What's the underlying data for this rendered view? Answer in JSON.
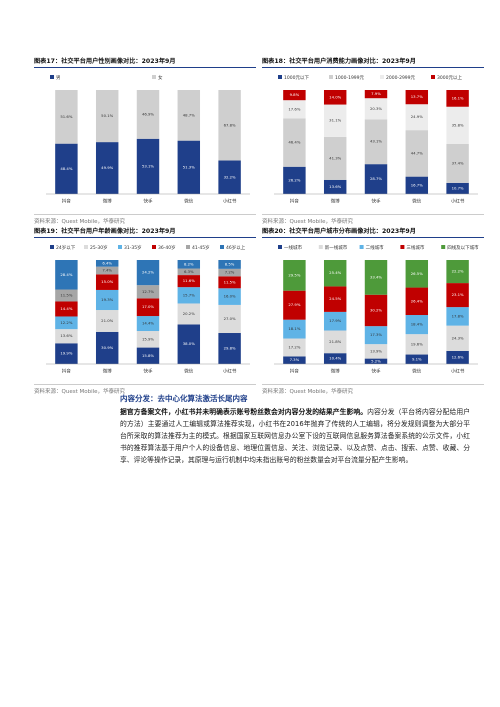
{
  "chart_data": [
    {
      "type": "bar",
      "title": "图表17：社交平台用户性别画像对比：2023年9月",
      "source": "资料来源：Quest Mobile，华泰研究",
      "categories": [
        "抖音",
        "微博",
        "快手",
        "微信",
        "小红书"
      ],
      "ylim": [
        0,
        100
      ],
      "series": [
        {
          "name": "男",
          "color": "#1f3f8a",
          "values": [
            48.4,
            49.9,
            53.1,
            51.3,
            32.2
          ],
          "value_labels": [
            "48.4%",
            "49.9%",
            "53.1%",
            "51.3%",
            "32.2%"
          ]
        },
        {
          "name": "女",
          "color": "#cfcfcf",
          "values": [
            51.6,
            50.1,
            46.9,
            48.7,
            67.8
          ],
          "value_labels": [
            "51.6%",
            "50.1%",
            "46.9%",
            "48.7%",
            "67.8%"
          ]
        }
      ]
    },
    {
      "type": "bar",
      "title": "图表18：社交平台用户消费能力画像对比：2023年9月",
      "source": "资料来源：Quest Mobile，华泰研究",
      "categories": [
        "抖音",
        "微博",
        "快手",
        "微信",
        "小红书"
      ],
      "ylim": [
        0,
        100
      ],
      "series": [
        {
          "name": "1000元以下",
          "color": "#1f3f8a",
          "values": [
            26.2,
            13.6,
            28.7,
            16.7,
            10.7
          ],
          "value_labels": [
            "26.2%",
            "13.6%",
            "28.7%",
            "16.7%",
            "10.7%"
          ]
        },
        {
          "name": "1000-1999元",
          "color": "#cfcfcf",
          "values": [
            46.4,
            41.3,
            43.1,
            44.7,
            37.4
          ],
          "value_labels": [
            "46.4%",
            "41.3%",
            "43.1%",
            "44.7%",
            "37.4%"
          ]
        },
        {
          "name": "2000-2999元",
          "color": "#ececec",
          "values": [
            17.6,
            31.1,
            20.3,
            24.9,
            35.8
          ],
          "value_labels": [
            "17.6%",
            "31.1%",
            "20.3%",
            "24.9%",
            "35.8%"
          ]
        },
        {
          "name": "3000元以上",
          "color": "#c00000",
          "values": [
            9.8,
            14.0,
            7.9,
            13.7,
            16.1
          ],
          "value_labels": [
            "9.8%",
            "14.0%",
            "7.9%",
            "13.7%",
            "16.1%"
          ]
        }
      ]
    },
    {
      "type": "bar",
      "title": "图表19：社交平台用户年龄画像对比：2023年9月",
      "source": "资料来源：Quest Mobile，华泰研究",
      "categories": [
        "抖音",
        "微博",
        "快手",
        "微信",
        "小红书"
      ],
      "ylim": [
        0,
        100
      ],
      "series": [
        {
          "name": "24岁以下",
          "color": "#1f3f8a",
          "values": [
            19.9,
            30.9,
            15.8,
            38.0,
            29.8
          ],
          "value_labels": [
            "19.9%",
            "30.9%",
            "15.8%",
            "38.0%",
            "29.8%"
          ]
        },
        {
          "name": "25-30岁",
          "color": "#dcdcdc",
          "values": [
            13.6,
            21.0,
            15.9,
            20.2,
            27.0
          ],
          "value_labels": [
            "13.6%",
            "21.0%",
            "15.9%",
            "20.2%",
            "27.0%"
          ]
        },
        {
          "name": "31-35岁",
          "color": "#5fb3e6",
          "values": [
            12.2,
            19.3,
            14.4,
            15.7,
            16.0
          ],
          "value_labels": [
            "12.2%",
            "19.3%",
            "14.4%",
            "15.7%",
            "16.0%"
          ]
        },
        {
          "name": "36-40岁",
          "color": "#c00000",
          "values": [
            14.4,
            15.0,
            17.0,
            11.6,
            11.5
          ],
          "value_labels": [
            "14.4%",
            "15.0%",
            "17.0%",
            "11.6%",
            "11.5%"
          ]
        },
        {
          "name": "41-45岁",
          "color": "#a6a6a6",
          "values": [
            11.5,
            7.4,
            12.7,
            6.3,
            7.2
          ],
          "value_labels": [
            "11.5%",
            "7.4%",
            "12.7%",
            "6.3%",
            "7.2%"
          ]
        },
        {
          "name": "46岁以上",
          "color": "#2e75b6",
          "values": [
            28.4,
            6.4,
            24.2,
            8.2,
            8.5
          ],
          "value_labels": [
            "28.4%",
            "6.4%",
            "24.2%",
            "8.2%",
            "8.5%"
          ]
        }
      ]
    },
    {
      "type": "bar",
      "title": "图表20：社交平台用户城市分布画像对比：2023年9月",
      "source": "资料来源：Quest Mobile，华泰研究",
      "categories": [
        "抖音",
        "微博",
        "快手",
        "微信",
        "小红书"
      ],
      "ylim": [
        0,
        100
      ],
      "series": [
        {
          "name": "一线城市",
          "color": "#1f3f8a",
          "values": [
            7.3,
            10.4,
            5.2,
            9.1,
            12.6
          ],
          "value_labels": [
            "7.3%",
            "10.4%",
            "5.2%",
            "9.1%",
            "12.6%"
          ]
        },
        {
          "name": "新一线城市",
          "color": "#dcdcdc",
          "values": [
            17.2,
            21.8,
            13.9,
            19.6,
            24.3
          ],
          "value_labels": [
            "17.2%",
            "21.8%",
            "13.9%",
            "19.6%",
            "24.3%"
          ]
        },
        {
          "name": "二线城市",
          "color": "#5fb3e6",
          "values": [
            18.1,
            17.9,
            17.3,
            18.4,
            17.8
          ],
          "value_labels": [
            "18.1%",
            "17.9%",
            "17.3%",
            "18.4%",
            "17.8%"
          ]
        },
        {
          "name": "三线城市",
          "color": "#c00000",
          "values": [
            27.9,
            24.5,
            30.2,
            26.4,
            23.1
          ],
          "value_labels": [
            "27.9%",
            "24.5%",
            "30.2%",
            "26.4%",
            "23.1%"
          ]
        },
        {
          "name": "四线及以下城市",
          "color": "#4e9a3a",
          "values": [
            29.5,
            25.4,
            33.4,
            26.5,
            22.2
          ],
          "value_labels": [
            "29.5%",
            "25.4%",
            "33.4%",
            "26.5%",
            "22.2%"
          ]
        }
      ]
    }
  ],
  "section": {
    "heading": "内容分发：去中心化算法激活长尾内容",
    "lead": "据官方备案文件，小红书并未明确表示账号粉丝数会对内容分发的结果产生影响。",
    "body": "内容分发（平台将内容分配给用户的方法）主要通过人工编辑或算法推荐实现，小红书在2016年抛弃了传统的人工编辑，将分发规则调整为大部分平台所采取的算法推荐为主的模式。根据国家互联网信息办公室下设的互联网信息服务算法备案系统的公示文件，小红书的推荐算法基于用户个人的设备信息、地理位置信息、关注、浏览记录、以及点赞、点击、搜索、点赞、收藏、分享、评论等操作记录，其原理与运行机制中均未指出账号的粉丝数量会对平台流量分配产生影响。"
  }
}
